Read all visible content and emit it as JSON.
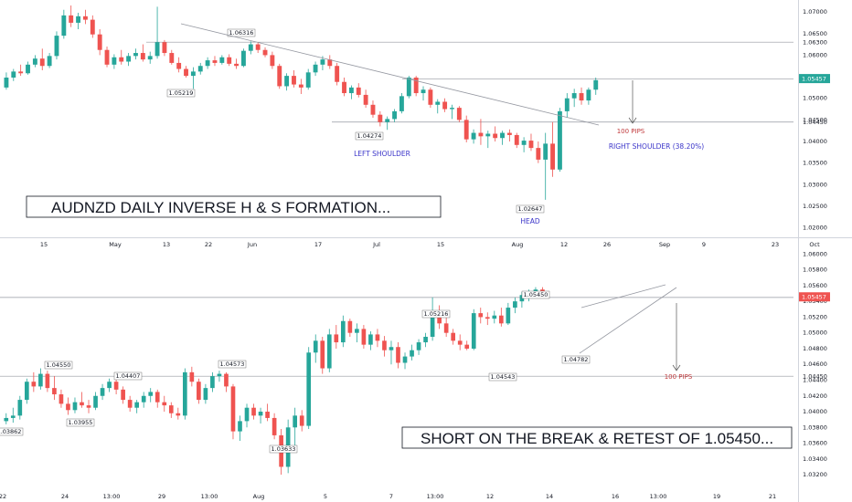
{
  "colors": {
    "up": "#26a69a",
    "down": "#ef5350",
    "line": "#9598a1",
    "text": "#131722",
    "annot_blue": "#3a34c9",
    "annot_red": "#c0393b",
    "last_price_bg": "#26a69a",
    "last_price_bg_bottom": "#ef5350"
  },
  "chart_data": [
    {
      "type": "candlestick",
      "title": "AUDNZD DAILY INVERSE H & S FORMATION...",
      "y_ticks": [
        "1.07000",
        "1.06500",
        "1.06000",
        "1.05500",
        "1.05000",
        "1.04500",
        "1.04000",
        "1.03500",
        "1.03000",
        "1.02500",
        "1.02000"
      ],
      "ylim": [
        1.0195,
        1.0715
      ],
      "x_ticks": [
        "15",
        "May",
        "13",
        "22",
        "Jun",
        "17",
        "Jul",
        "15",
        "Aug",
        "12",
        "26",
        "Sep",
        "9",
        "23",
        "Oct"
      ],
      "price_levels": [
        {
          "label": "1.06300",
          "value": 1.063
        },
        {
          "label": "1.05450",
          "value": 1.0545
        },
        {
          "label": "1.04450",
          "value": 1.0445
        }
      ],
      "last_price": "1.05457",
      "price_labels": [
        "1.06316",
        "1.05219",
        "1.04274",
        "1.02647"
      ],
      "annotations": {
        "left_shoulder": "LEFT SHOULDER",
        "head": "HEAD",
        "right_shoulder": "RIGHT SHOULDER (38.20%)",
        "pips": "100 PIPS"
      },
      "ohlc": [
        [
          1.0525,
          1.056,
          1.052,
          1.0548
        ],
        [
          1.0548,
          1.0568,
          1.054,
          1.0562
        ],
        [
          1.0562,
          1.0578,
          1.0552,
          1.0558
        ],
        [
          1.0558,
          1.0585,
          1.0555,
          1.0578
        ],
        [
          1.0578,
          1.06,
          1.0572,
          1.0592
        ],
        [
          1.0592,
          1.0615,
          1.0565,
          1.0575
        ],
        [
          1.0575,
          1.0605,
          1.057,
          1.0598
        ],
        [
          1.0598,
          1.0655,
          1.059,
          1.0645
        ],
        [
          1.0645,
          1.0705,
          1.0638,
          1.0692
        ],
        [
          1.0692,
          1.0715,
          1.0665,
          1.0675
        ],
        [
          1.0675,
          1.0698,
          1.066,
          1.069
        ],
        [
          1.069,
          1.0705,
          1.0672,
          1.0682
        ],
        [
          1.0682,
          1.0692,
          1.064,
          1.0648
        ],
        [
          1.0648,
          1.066,
          1.06,
          1.0612
        ],
        [
          1.0612,
          1.062,
          1.0572,
          1.0578
        ],
        [
          1.0578,
          1.0602,
          1.0568,
          1.0595
        ],
        [
          1.0595,
          1.0612,
          1.0578,
          1.0585
        ],
        [
          1.0585,
          1.0605,
          1.0575,
          1.0598
        ],
        [
          1.0598,
          1.0615,
          1.059,
          1.0605
        ],
        [
          1.0605,
          1.0625,
          1.0585,
          1.059
        ],
        [
          1.059,
          1.0608,
          1.058,
          1.0598
        ],
        [
          1.0598,
          1.0712,
          1.0592,
          1.063
        ],
        [
          1.063,
          1.0635,
          1.0598,
          1.0605
        ],
        [
          1.0605,
          1.0612,
          1.0578,
          1.0582
        ],
        [
          1.0582,
          1.0595,
          1.056,
          1.0568
        ],
        [
          1.0568,
          1.0575,
          1.0548,
          1.0552
        ],
        [
          1.0552,
          1.0572,
          1.0522,
          1.0562
        ],
        [
          1.0562,
          1.0582,
          1.0555,
          1.0575
        ],
        [
          1.0575,
          1.0595,
          1.0568,
          1.0588
        ],
        [
          1.0588,
          1.0598,
          1.0575,
          1.0582
        ],
        [
          1.0582,
          1.06,
          1.0578,
          1.0595
        ],
        [
          1.0595,
          1.0602,
          1.0575,
          1.058
        ],
        [
          1.058,
          1.0592,
          1.0568,
          1.0575
        ],
        [
          1.0575,
          1.0615,
          1.0572,
          1.061
        ],
        [
          1.061,
          1.0632,
          1.0602,
          1.0625
        ],
        [
          1.0625,
          1.063,
          1.0605,
          1.0612
        ],
        [
          1.0612,
          1.0618,
          1.0595,
          1.06
        ],
        [
          1.06,
          1.0608,
          1.0568,
          1.0575
        ],
        [
          1.0575,
          1.058,
          1.0522,
          1.0528
        ],
        [
          1.0528,
          1.0558,
          1.0518,
          1.0552
        ],
        [
          1.0552,
          1.0565,
          1.0525,
          1.0532
        ],
        [
          1.0532,
          1.0545,
          1.051,
          1.0525
        ],
        [
          1.0525,
          1.0568,
          1.052,
          1.056
        ],
        [
          1.056,
          1.0585,
          1.0552,
          1.0578
        ],
        [
          1.0578,
          1.0598,
          1.0565,
          1.059
        ],
        [
          1.059,
          1.06,
          1.0568,
          1.0575
        ],
        [
          1.0575,
          1.0582,
          1.053,
          1.0538
        ],
        [
          1.0538,
          1.0548,
          1.0505,
          1.0512
        ],
        [
          1.0512,
          1.053,
          1.0498,
          1.0525
        ],
        [
          1.0525,
          1.0535,
          1.0502,
          1.0508
        ],
        [
          1.0508,
          1.052,
          1.0478,
          1.0485
        ],
        [
          1.0485,
          1.0495,
          1.0455,
          1.0462
        ],
        [
          1.0462,
          1.047,
          1.0435,
          1.0445
        ],
        [
          1.0445,
          1.0458,
          1.0427,
          1.0452
        ],
        [
          1.0452,
          1.0475,
          1.0445,
          1.047
        ],
        [
          1.047,
          1.0512,
          1.0465,
          1.0505
        ],
        [
          1.0505,
          1.0552,
          1.05,
          1.0548
        ],
        [
          1.0548,
          1.0552,
          1.0505,
          1.0512
        ],
        [
          1.0512,
          1.0528,
          1.0495,
          1.052
        ],
        [
          1.052,
          1.0525,
          1.0478,
          1.0485
        ],
        [
          1.0485,
          1.0498,
          1.0465,
          1.0492
        ],
        [
          1.0492,
          1.05,
          1.0468,
          1.0475
        ],
        [
          1.0475,
          1.0485,
          1.0452,
          1.0478
        ],
        [
          1.0478,
          1.0482,
          1.0445,
          1.045
        ],
        [
          1.045,
          1.046,
          1.0398,
          1.0405
        ],
        [
          1.0405,
          1.0428,
          1.0395,
          1.042
        ],
        [
          1.042,
          1.0452,
          1.0392,
          1.0412
        ],
        [
          1.0412,
          1.0425,
          1.0385,
          1.0418
        ],
        [
          1.0418,
          1.0435,
          1.04,
          1.0408
        ],
        [
          1.0408,
          1.0425,
          1.0392,
          1.042
        ],
        [
          1.042,
          1.0428,
          1.04,
          1.0415
        ],
        [
          1.0415,
          1.042,
          1.0385,
          1.0392
        ],
        [
          1.0392,
          1.041,
          1.0375,
          1.0402
        ],
        [
          1.0402,
          1.0418,
          1.0378,
          1.0385
        ],
        [
          1.0385,
          1.04,
          1.035,
          1.0358
        ],
        [
          1.0358,
          1.042,
          1.0265,
          1.0395
        ],
        [
          1.0395,
          1.0445,
          1.0318,
          1.0335
        ],
        [
          1.0335,
          1.0478,
          1.033,
          1.047
        ],
        [
          1.047,
          1.0512,
          1.0455,
          1.05
        ],
        [
          1.05,
          1.0522,
          1.048,
          1.0512
        ],
        [
          1.0512,
          1.0525,
          1.0485,
          1.0495
        ],
        [
          1.0495,
          1.0525,
          1.0485,
          1.052
        ],
        [
          1.052,
          1.0548,
          1.0508,
          1.0542
        ]
      ],
      "time_axis_extent": 110
    },
    {
      "type": "candlestick",
      "title": "SHORT ON THE BREAK & RETEST OF 1.05450...",
      "y_ticks": [
        "1.06000",
        "1.05800",
        "1.05600",
        "1.05400",
        "1.05200",
        "1.05000",
        "1.04800",
        "1.04600",
        "1.04400",
        "1.04200",
        "1.04000",
        "1.03800",
        "1.03600",
        "1.03400",
        "1.03200"
      ],
      "ylim": [
        1.0312,
        1.0612
      ],
      "x_ticks": [
        "22",
        "24",
        "13:00",
        "29",
        "13:00",
        "Aug",
        "5",
        "7",
        "13:00",
        "12",
        "14",
        "16",
        "13:00",
        "19",
        "21"
      ],
      "price_levels": [
        {
          "label": "1.05450",
          "value": 1.0545
        },
        {
          "label": "1.04450",
          "value": 1.0445
        }
      ],
      "last_price": "1.05457",
      "price_labels": [
        "1.03862",
        "1.04550",
        "1.03955",
        "1.04407",
        "1.04573",
        "1.03633",
        "1.05216",
        "1.04543",
        "1.05450",
        "1.04782"
      ],
      "annotations": {
        "pips": "100 PIPS"
      },
      "ohlc": [
        [
          1.0388,
          1.0398,
          1.0384,
          1.0392
        ],
        [
          1.0392,
          1.0405,
          1.0386,
          1.0395
        ],
        [
          1.0395,
          1.042,
          1.039,
          1.0415
        ],
        [
          1.0415,
          1.0442,
          1.041,
          1.0438
        ],
        [
          1.0438,
          1.045,
          1.0425,
          1.0432
        ],
        [
          1.0432,
          1.0455,
          1.0428,
          1.0448
        ],
        [
          1.0448,
          1.0452,
          1.0425,
          1.043
        ],
        [
          1.043,
          1.0445,
          1.0415,
          1.0422
        ],
        [
          1.0422,
          1.0428,
          1.0405,
          1.041
        ],
        [
          1.041,
          1.0418,
          1.0396,
          1.0402
        ],
        [
          1.0402,
          1.0418,
          1.0398,
          1.0412
        ],
        [
          1.0412,
          1.0425,
          1.0405,
          1.0408
        ],
        [
          1.0408,
          1.0415,
          1.0398,
          1.0405
        ],
        [
          1.0405,
          1.0425,
          1.0402,
          1.042
        ],
        [
          1.042,
          1.0435,
          1.0415,
          1.043
        ],
        [
          1.043,
          1.0442,
          1.0425,
          1.0438
        ],
        [
          1.0438,
          1.0441,
          1.0422,
          1.0428
        ],
        [
          1.0428,
          1.0432,
          1.041,
          1.0415
        ],
        [
          1.0415,
          1.042,
          1.04,
          1.0405
        ],
        [
          1.0405,
          1.0415,
          1.0398,
          1.0412
        ],
        [
          1.0412,
          1.0425,
          1.0405,
          1.042
        ],
        [
          1.042,
          1.043,
          1.0412,
          1.0425
        ],
        [
          1.0425,
          1.0428,
          1.0405,
          1.0412
        ],
        [
          1.0412,
          1.042,
          1.04,
          1.0408
        ],
        [
          1.0408,
          1.0412,
          1.0392,
          1.0398
        ],
        [
          1.0398,
          1.0405,
          1.039,
          1.0395
        ],
        [
          1.0395,
          1.0455,
          1.039,
          1.045
        ],
        [
          1.045,
          1.0457,
          1.0432,
          1.0438
        ],
        [
          1.0438,
          1.0442,
          1.041,
          1.0415
        ],
        [
          1.0415,
          1.0435,
          1.041,
          1.043
        ],
        [
          1.043,
          1.045,
          1.0425,
          1.0445
        ],
        [
          1.0445,
          1.0452,
          1.0438,
          1.0448
        ],
        [
          1.0448,
          1.045,
          1.0425,
          1.0432
        ],
        [
          1.0432,
          1.0435,
          1.0365,
          1.0375
        ],
        [
          1.0375,
          1.0395,
          1.0363,
          1.0388
        ],
        [
          1.0388,
          1.041,
          1.038,
          1.0405
        ],
        [
          1.0405,
          1.041,
          1.039,
          1.0395
        ],
        [
          1.0395,
          1.0405,
          1.0385,
          1.04
        ],
        [
          1.04,
          1.041,
          1.0388,
          1.0392
        ],
        [
          1.0392,
          1.0398,
          1.0365,
          1.037
        ],
        [
          1.037,
          1.0378,
          1.032,
          1.033
        ],
        [
          1.033,
          1.039,
          1.0322,
          1.038
        ],
        [
          1.038,
          1.0405,
          1.0352,
          1.0395
        ],
        [
          1.0395,
          1.0402,
          1.0375,
          1.0382
        ],
        [
          1.0382,
          1.0482,
          1.0378,
          1.0475
        ],
        [
          1.0475,
          1.0498,
          1.0462,
          1.049
        ],
        [
          1.049,
          1.0495,
          1.0448,
          1.0455
        ],
        [
          1.0455,
          1.0505,
          1.045,
          1.0498
        ],
        [
          1.0498,
          1.051,
          1.048,
          1.0488
        ],
        [
          1.0488,
          1.0522,
          1.0482,
          1.0515
        ],
        [
          1.0515,
          1.0518,
          1.0495,
          1.05
        ],
        [
          1.05,
          1.0512,
          1.0488,
          1.0505
        ],
        [
          1.0505,
          1.051,
          1.048,
          1.0485
        ],
        [
          1.0485,
          1.0502,
          1.0478,
          1.0498
        ],
        [
          1.0498,
          1.0505,
          1.0482,
          1.049
        ],
        [
          1.049,
          1.0496,
          1.047,
          1.0478
        ],
        [
          1.0478,
          1.049,
          1.046,
          1.0482
        ],
        [
          1.0482,
          1.0488,
          1.0455,
          1.0462
        ],
        [
          1.0462,
          1.0475,
          1.0454,
          1.047
        ],
        [
          1.047,
          1.0485,
          1.0465,
          1.0478
        ],
        [
          1.0478,
          1.0492,
          1.0472,
          1.0488
        ],
        [
          1.0488,
          1.05,
          1.0482,
          1.0495
        ],
        [
          1.0495,
          1.0545,
          1.049,
          1.0528
        ],
        [
          1.0528,
          1.0535,
          1.0505,
          1.0512
        ],
        [
          1.0512,
          1.052,
          1.0495,
          1.05
        ],
        [
          1.05,
          1.0505,
          1.0485,
          1.049
        ],
        [
          1.049,
          1.0498,
          1.0478,
          1.0485
        ],
        [
          1.0485,
          1.049,
          1.0478,
          1.048
        ],
        [
          1.048,
          1.053,
          1.0478,
          1.0525
        ],
        [
          1.0525,
          1.0532,
          1.0512,
          1.052
        ],
        [
          1.052,
          1.0526,
          1.051,
          1.0518
        ],
        [
          1.0518,
          1.0528,
          1.0512,
          1.0522
        ],
        [
          1.0522,
          1.0532,
          1.0508,
          1.0512
        ],
        [
          1.0512,
          1.0538,
          1.051,
          1.0532
        ],
        [
          1.0532,
          1.0545,
          1.0525,
          1.054
        ],
        [
          1.054,
          1.0552,
          1.0532,
          1.0548
        ],
        [
          1.0548,
          1.0555,
          1.054,
          1.0552
        ],
        [
          1.0552,
          1.0558,
          1.0545,
          1.0555
        ],
        [
          1.0555,
          1.0558,
          1.0546,
          1.055
        ]
      ],
      "time_axis_extent": 115
    }
  ]
}
